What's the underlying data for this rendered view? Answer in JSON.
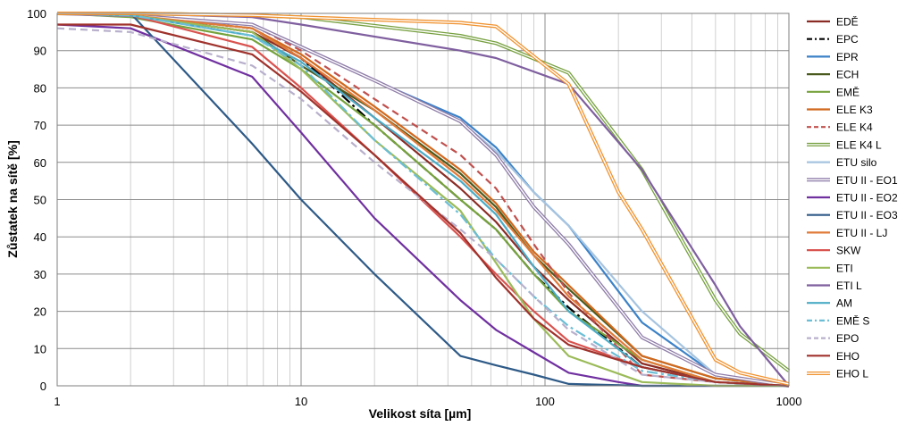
{
  "chart_data": {
    "type": "line",
    "title": "",
    "xlabel": "Velikost síta [µm]",
    "ylabel": "Zůstatek na sítě [%]",
    "x_scale": "log",
    "xlim": [
      1,
      1000
    ],
    "ylim": [
      0,
      100
    ],
    "x_ticks": [
      "1",
      "10",
      "100",
      "1000"
    ],
    "y_ticks": [
      "0",
      "10",
      "20",
      "30",
      "40",
      "50",
      "60",
      "70",
      "80",
      "90",
      "100"
    ],
    "grid": true,
    "legend_position": "right",
    "series": [
      {
        "name": "EDĚ",
        "color": "#8B2C24",
        "dash": "solid",
        "x": [
          1,
          2,
          6.3,
          10,
          20,
          45,
          63,
          90,
          125,
          250,
          500,
          1000
        ],
        "y": [
          100,
          99.5,
          95,
          88,
          72,
          53,
          44,
          32,
          23,
          6,
          1,
          0
        ]
      },
      {
        "name": "EPC",
        "color": "#000000",
        "dash": "dashdot",
        "x": [
          1,
          2,
          6.3,
          10,
          20,
          45,
          63,
          90,
          125,
          250,
          500,
          1000
        ],
        "y": [
          100,
          99.5,
          96,
          88,
          70,
          50,
          42,
          30,
          21,
          5,
          1,
          0
        ]
      },
      {
        "name": "EPR",
        "color": "#3C82C8",
        "dash": "solid",
        "x": [
          1,
          2,
          6.3,
          10,
          20,
          45,
          63,
          90,
          125,
          250,
          500,
          1000
        ],
        "y": [
          100,
          99.5,
          97,
          91,
          82,
          72,
          64,
          52,
          43,
          17,
          3,
          0
        ]
      },
      {
        "name": "ECH",
        "color": "#4A5A1E",
        "dash": "solid",
        "x": [
          1,
          2,
          6.3,
          10,
          20,
          45,
          63,
          90,
          125,
          250,
          500,
          1000
        ],
        "y": [
          100,
          99.5,
          95,
          86,
          74,
          57,
          48,
          35,
          26,
          8,
          2,
          0
        ]
      },
      {
        "name": "EMĚ",
        "color": "#76A33C",
        "dash": "solid",
        "x": [
          1,
          2,
          6.3,
          10,
          20,
          45,
          63,
          90,
          125,
          250,
          500,
          1000
        ],
        "y": [
          100,
          99,
          93,
          85,
          70,
          50,
          42,
          30,
          20,
          7,
          1,
          0
        ]
      },
      {
        "name": "ELE K3",
        "color": "#D2691E",
        "dash": "solid",
        "x": [
          1,
          2,
          6.3,
          10,
          20,
          45,
          63,
          90,
          125,
          250,
          500,
          1000
        ],
        "y": [
          100,
          99.5,
          96,
          89,
          75,
          58,
          49,
          36,
          27,
          8,
          2,
          0
        ]
      },
      {
        "name": "ELE K4",
        "color": "#C0504D",
        "dash": "dashed",
        "x": [
          1,
          2,
          6.3,
          10,
          20,
          45,
          63,
          90,
          125,
          250,
          500,
          1000
        ],
        "y": [
          100,
          99.5,
          97,
          90,
          77,
          62,
          53,
          38,
          25,
          3,
          1,
          0
        ]
      },
      {
        "name": "ELE K4 L",
        "color": "#77A040",
        "dash": "double",
        "x": [
          1,
          2,
          6.3,
          10,
          45,
          63,
          125,
          250,
          500,
          630,
          1000
        ],
        "y": [
          100,
          100,
          99.5,
          99,
          94,
          92,
          84,
          58,
          23,
          14,
          4
        ]
      },
      {
        "name": "ETU silo",
        "color": "#A6C4E0",
        "dash": "solid",
        "x": [
          1,
          2,
          6.3,
          10,
          20,
          45,
          63,
          90,
          125,
          250,
          500,
          1000
        ],
        "y": [
          100,
          99.5,
          97,
          91,
          82,
          71,
          63,
          52,
          43,
          20,
          3,
          0
        ]
      },
      {
        "name": "ETU II - EO1",
        "color": "#8E7CA8",
        "dash": "double",
        "x": [
          1,
          2,
          6.3,
          10,
          20,
          45,
          63,
          90,
          125,
          250,
          500,
          1000
        ],
        "y": [
          100,
          99.5,
          97,
          91,
          82,
          71,
          62,
          48,
          38,
          13,
          3,
          0
        ]
      },
      {
        "name": "ETU II - EO2",
        "color": "#7030A0",
        "dash": "solid",
        "x": [
          1,
          2,
          6.3,
          10,
          20,
          45,
          63,
          90,
          125,
          200,
          250,
          1000
        ],
        "y": [
          97,
          96,
          83,
          68,
          45,
          23,
          15,
          9,
          3.5,
          1,
          0,
          0
        ]
      },
      {
        "name": "ETU II - EO3",
        "color": "#2E5A87",
        "dash": "solid",
        "x": [
          1,
          2,
          6.3,
          10,
          20,
          45,
          63,
          90,
          125,
          250,
          1000
        ],
        "y": [
          100,
          100,
          65,
          50,
          30,
          8,
          5.5,
          3,
          0.5,
          0,
          0
        ]
      },
      {
        "name": "ETU II - LJ",
        "color": "#E07B39",
        "dash": "solid",
        "x": [
          1,
          2,
          6.3,
          10,
          20,
          45,
          63,
          90,
          125,
          250,
          500,
          1000
        ],
        "y": [
          100,
          99.5,
          96,
          88,
          74,
          56,
          47,
          35,
          24,
          7,
          1,
          0
        ]
      },
      {
        "name": "SKW",
        "color": "#D9534F",
        "dash": "solid",
        "x": [
          1,
          2,
          6.3,
          10,
          20,
          45,
          63,
          90,
          125,
          250,
          500,
          1000
        ],
        "y": [
          100,
          99.5,
          91,
          80,
          62,
          40,
          30,
          20,
          12,
          5,
          1,
          0
        ]
      },
      {
        "name": "ETI",
        "color": "#9BBB59",
        "dash": "solid",
        "x": [
          1,
          2,
          6.3,
          10,
          20,
          45,
          63,
          90,
          125,
          250,
          500,
          1000
        ],
        "y": [
          100,
          99.5,
          95,
          85,
          66,
          47,
          33,
          18,
          8,
          1,
          0,
          0
        ]
      },
      {
        "name": "ETI L",
        "color": "#7F5F9F",
        "dash": "solid",
        "x": [
          1,
          2,
          6.3,
          10,
          45,
          63,
          125,
          250,
          500,
          630,
          1000
        ],
        "y": [
          100,
          100,
          99,
          97,
          90,
          88,
          81,
          58,
          27,
          16,
          0
        ]
      },
      {
        "name": "AM",
        "color": "#4BACC6",
        "dash": "solid",
        "x": [
          1,
          2,
          6.3,
          10,
          20,
          45,
          63,
          90,
          125,
          250,
          500,
          1000
        ],
        "y": [
          100,
          99.5,
          94,
          87,
          72,
          55,
          46,
          32,
          20,
          5,
          1,
          0
        ]
      },
      {
        "name": "EMĚ S",
        "color": "#6BBED6",
        "dash": "dashdot",
        "x": [
          1,
          2,
          6.3,
          10,
          20,
          45,
          63,
          90,
          125,
          250,
          500,
          1000
        ],
        "y": [
          100,
          99.5,
          94,
          86,
          66,
          46,
          34,
          24,
          16,
          4,
          1,
          0
        ]
      },
      {
        "name": "EPO",
        "color": "#B8B0CC",
        "dash": "dashed",
        "x": [
          1,
          2,
          6.3,
          10,
          20,
          45,
          63,
          90,
          125,
          250,
          500,
          1000
        ],
        "y": [
          96,
          95,
          86,
          77,
          60,
          42,
          34,
          24,
          15,
          3,
          1,
          0
        ]
      },
      {
        "name": "EHO",
        "color": "#A0322C",
        "dash": "solid",
        "x": [
          1,
          2,
          6.3,
          10,
          20,
          45,
          63,
          90,
          125,
          250,
          500,
          1000
        ],
        "y": [
          97,
          97,
          89,
          79,
          62,
          41,
          29,
          18,
          11,
          5,
          1,
          0
        ]
      },
      {
        "name": "EHO L",
        "color": "#F0922F",
        "dash": "double",
        "x": [
          1,
          2,
          6.3,
          10,
          45,
          63,
          125,
          200,
          250,
          500,
          630,
          1000
        ],
        "y": [
          100,
          100,
          99.5,
          99,
          97.5,
          96.5,
          81,
          52,
          42,
          7,
          3.5,
          0.5
        ]
      }
    ]
  }
}
